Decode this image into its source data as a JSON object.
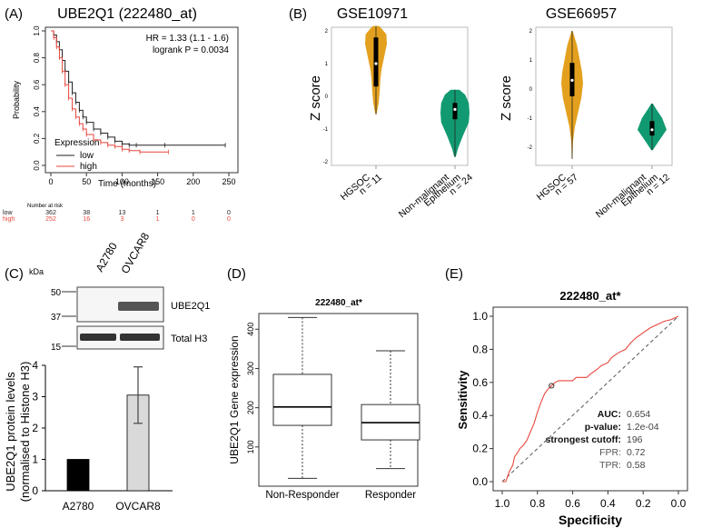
{
  "panel_labels": {
    "a": "(A)",
    "b": "(B)",
    "c": "(C)",
    "d": "(D)",
    "e": "(E)"
  },
  "colors": {
    "km_low": "#222222",
    "km_high": "#e8473e",
    "violin_hgsoc": "#e3a01e",
    "violin_normal": "#119a71",
    "bar_a2780": "#000000",
    "bar_ovcar8": "#d9d9d9",
    "roc": "#e8473e"
  },
  "chart_data": [
    {
      "id": "km",
      "type": "line",
      "title": "UBE2Q1 (222480_at)",
      "xlabel": "Time (months)",
      "ylabel": "Probability",
      "xlim": [
        0,
        250
      ],
      "ylim": [
        0,
        1
      ],
      "x_ticks": [
        "0",
        "50",
        "100",
        "150",
        "200",
        "250"
      ],
      "y_ticks": [
        "0.0",
        "0.2",
        "0.4",
        "0.6",
        "0.8",
        "1.0"
      ],
      "hr_text": "HR = 1.33 (1.1 - 1.6)",
      "logrank_text": "logrank P = 0.0034",
      "legend_title": "Expression",
      "series": [
        {
          "name": "low",
          "points": [
            [
              0,
              1.0
            ],
            [
              4,
              0.97
            ],
            [
              8,
              0.92
            ],
            [
              12,
              0.86
            ],
            [
              16,
              0.78
            ],
            [
              20,
              0.7
            ],
            [
              25,
              0.62
            ],
            [
              30,
              0.54
            ],
            [
              35,
              0.47
            ],
            [
              40,
              0.41
            ],
            [
              45,
              0.36
            ],
            [
              50,
              0.32
            ],
            [
              60,
              0.27
            ],
            [
              70,
              0.24
            ],
            [
              80,
              0.21
            ],
            [
              90,
              0.18
            ],
            [
              100,
              0.16
            ],
            [
              110,
              0.15
            ],
            [
              120,
              0.15
            ],
            [
              160,
              0.15
            ],
            [
              245,
              0.15
            ]
          ]
        },
        {
          "name": "high",
          "points": [
            [
              0,
              1.0
            ],
            [
              4,
              0.95
            ],
            [
              8,
              0.88
            ],
            [
              12,
              0.8
            ],
            [
              16,
              0.7
            ],
            [
              20,
              0.6
            ],
            [
              25,
              0.5
            ],
            [
              30,
              0.42
            ],
            [
              35,
              0.36
            ],
            [
              40,
              0.31
            ],
            [
              45,
              0.27
            ],
            [
              50,
              0.23
            ],
            [
              60,
              0.19
            ],
            [
              70,
              0.17
            ],
            [
              80,
              0.15
            ],
            [
              90,
              0.14
            ],
            [
              100,
              0.12
            ],
            [
              110,
              0.11
            ],
            [
              125,
              0.1
            ],
            [
              165,
              0.1
            ]
          ]
        }
      ],
      "risk_header": "Number at risk",
      "risk_table": [
        {
          "label": "low",
          "values": [
            "362",
            "38",
            "13",
            "1",
            "1",
            "0"
          ]
        },
        {
          "label": "high",
          "values": [
            "252",
            "16",
            "3",
            "1",
            "0",
            "0"
          ]
        }
      ]
    },
    {
      "id": "violin_gse10971",
      "type": "violin",
      "title": "GSE10971",
      "ylabel": "Z score",
      "ylim": [
        -2,
        2
      ],
      "y_ticks": [
        "-2",
        "-1",
        "0",
        "1",
        "2"
      ],
      "groups": [
        {
          "name": "HGSOC",
          "n": "n = 11",
          "min": -0.55,
          "q1": 0.3,
          "median": 1.0,
          "q3": 1.8,
          "max": 2.15,
          "density": [
            [
              -0.55,
              0.05
            ],
            [
              -0.2,
              0.25
            ],
            [
              0.2,
              0.35
            ],
            [
              0.5,
              0.4
            ],
            [
              0.8,
              0.5
            ],
            [
              1.2,
              0.75
            ],
            [
              1.6,
              1.0
            ],
            [
              1.9,
              0.95
            ],
            [
              2.15,
              0.3
            ]
          ]
        },
        {
          "name": "Non-malignant Epithelium",
          "n": "n = 24",
          "min": -1.85,
          "q1": -0.7,
          "median": -0.4,
          "q3": -0.2,
          "max": 0.2,
          "density": [
            [
              -1.85,
              0.05
            ],
            [
              -1.6,
              0.2
            ],
            [
              -1.2,
              0.55
            ],
            [
              -0.8,
              0.95
            ],
            [
              -0.5,
              1.0
            ],
            [
              -0.2,
              0.95
            ],
            [
              0.05,
              0.7
            ],
            [
              0.2,
              0.3
            ]
          ]
        }
      ]
    },
    {
      "id": "violin_gse66957",
      "type": "violin",
      "title": "GSE66957",
      "ylabel": "Z score",
      "ylim": [
        -2.5,
        2
      ],
      "y_ticks": [
        "-2",
        "-1",
        "0",
        "1",
        "2"
      ],
      "groups": [
        {
          "name": "HGSOC",
          "n": "n = 57",
          "min": -2.4,
          "q1": -0.25,
          "median": 0.3,
          "q3": 0.9,
          "max": 2.0,
          "density": [
            [
              -2.4,
              0.03
            ],
            [
              -1.8,
              0.08
            ],
            [
              -1.3,
              0.25
            ],
            [
              -0.8,
              0.55
            ],
            [
              -0.3,
              0.85
            ],
            [
              0.2,
              1.0
            ],
            [
              0.6,
              0.9
            ],
            [
              1.0,
              0.7
            ],
            [
              1.5,
              0.45
            ],
            [
              2.0,
              0.05
            ]
          ]
        },
        {
          "name": "Non-malignant Epithelium",
          "n": "n = 12",
          "min": -2.1,
          "q1": -1.6,
          "median": -1.4,
          "q3": -1.1,
          "max": -0.5,
          "density": [
            [
              -2.1,
              0.05
            ],
            [
              -1.8,
              0.45
            ],
            [
              -1.4,
              1.0
            ],
            [
              -1.0,
              0.7
            ],
            [
              -0.7,
              0.3
            ],
            [
              -0.5,
              0.05
            ]
          ]
        }
      ]
    },
    {
      "id": "western_bar",
      "type": "bar",
      "lanes": [
        "A2780",
        "OVCAR8"
      ],
      "kda_label": "kDa",
      "kda_markers": [
        "50",
        "37",
        "15"
      ],
      "blots": [
        "UBE2Q1",
        "Total H3"
      ],
      "categories": [
        "A2780",
        "OVCAR8"
      ],
      "values": [
        1.0,
        3.05
      ],
      "errors": [
        0.0,
        0.9
      ],
      "ylabel_line1": "UBE2Q1 protein levels",
      "ylabel_line2": "(normalised to Histone H3)",
      "ylim": [
        0,
        4
      ],
      "y_ticks": [
        "0",
        "1",
        "2",
        "3",
        "4"
      ]
    },
    {
      "id": "boxplot",
      "type": "box",
      "title": "222480_at*",
      "ylabel": "UBE2Q1 Gene expression",
      "ylim": [
        0,
        440
      ],
      "y_ticks": [
        "100",
        "200",
        "300",
        "400"
      ],
      "groups": [
        {
          "name": "Non-Responder",
          "min": 20,
          "q1": 155,
          "median": 202,
          "q3": 285,
          "max": 430
        },
        {
          "name": "Responder",
          "min": 45,
          "q1": 118,
          "median": 162,
          "q3": 208,
          "max": 345
        }
      ]
    },
    {
      "id": "roc",
      "type": "line",
      "title": "222480_at*",
      "xlabel": "Specificity",
      "ylabel": "Sensitivity",
      "xlim": [
        1.0,
        0.0
      ],
      "ylim": [
        0,
        1
      ],
      "x_ticks": [
        "1.0",
        "0.8",
        "0.6",
        "0.4",
        "0.2",
        "0.0"
      ],
      "y_ticks": [
        "0.0",
        "0.2",
        "0.4",
        "0.6",
        "0.8",
        "1.0"
      ],
      "curve": [
        [
          1.0,
          0.0
        ],
        [
          0.98,
          0.0
        ],
        [
          0.97,
          0.03
        ],
        [
          0.96,
          0.06
        ],
        [
          0.94,
          0.1
        ],
        [
          0.93,
          0.15
        ],
        [
          0.91,
          0.18
        ],
        [
          0.9,
          0.2
        ],
        [
          0.88,
          0.22
        ],
        [
          0.86,
          0.25
        ],
        [
          0.84,
          0.3
        ],
        [
          0.82,
          0.35
        ],
        [
          0.8,
          0.42
        ],
        [
          0.78,
          0.48
        ],
        [
          0.76,
          0.53
        ],
        [
          0.74,
          0.56
        ],
        [
          0.72,
          0.58
        ],
        [
          0.7,
          0.6
        ],
        [
          0.68,
          0.61
        ],
        [
          0.6,
          0.61
        ],
        [
          0.58,
          0.63
        ],
        [
          0.52,
          0.63
        ],
        [
          0.5,
          0.65
        ],
        [
          0.46,
          0.68
        ],
        [
          0.44,
          0.7
        ],
        [
          0.4,
          0.72
        ],
        [
          0.38,
          0.75
        ],
        [
          0.34,
          0.78
        ],
        [
          0.3,
          0.8
        ],
        [
          0.27,
          0.84
        ],
        [
          0.24,
          0.87
        ],
        [
          0.2,
          0.9
        ],
        [
          0.16,
          0.93
        ],
        [
          0.12,
          0.95
        ],
        [
          0.08,
          0.97
        ],
        [
          0.04,
          0.98
        ],
        [
          0.0,
          1.0
        ]
      ],
      "cutoff_point": [
        0.72,
        0.58
      ],
      "stats": [
        {
          "label": "AUC:",
          "value": "0.654",
          "bold": true
        },
        {
          "label": "p-value:",
          "value": "1.2e-04",
          "bold": true
        },
        {
          "label": "strongest cutoff:",
          "value": "196",
          "bold": true
        },
        {
          "label": "FPR:",
          "value": "0.72",
          "bold": false
        },
        {
          "label": "TPR:",
          "value": "0.58",
          "bold": false
        }
      ]
    }
  ]
}
